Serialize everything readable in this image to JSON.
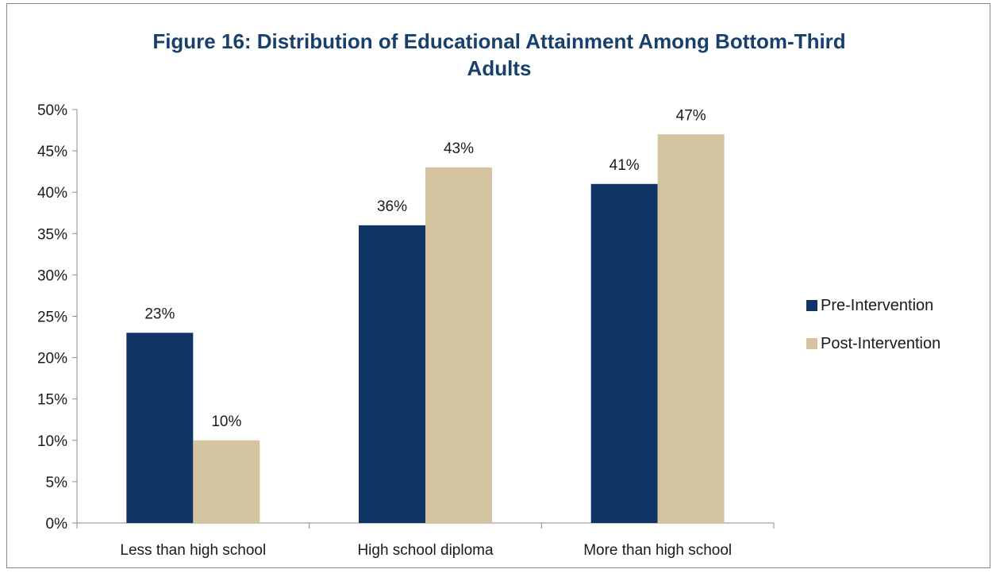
{
  "chart_data": {
    "type": "bar",
    "title_line1": "Figure 16: Distribution of Educational Attainment Among Bottom-Third",
    "title_line2": "Adults",
    "categories": [
      "Less than high school",
      "High school diploma",
      "More than high school"
    ],
    "series": [
      {
        "name": "Pre-Intervention",
        "values": [
          23,
          36,
          41
        ],
        "labels": [
          "23%",
          "36%",
          "41%"
        ],
        "color": "#0f3567"
      },
      {
        "name": "Post-Intervention",
        "values": [
          10,
          43,
          47
        ],
        "labels": [
          "10%",
          "43%",
          "47%"
        ],
        "color": "#d4c5a0"
      }
    ],
    "ylim": [
      0,
      50
    ],
    "yticks": [
      "0%",
      "5%",
      "10%",
      "15%",
      "20%",
      "25%",
      "30%",
      "35%",
      "40%",
      "45%",
      "50%"
    ],
    "grid": false,
    "legend_position": "right"
  }
}
